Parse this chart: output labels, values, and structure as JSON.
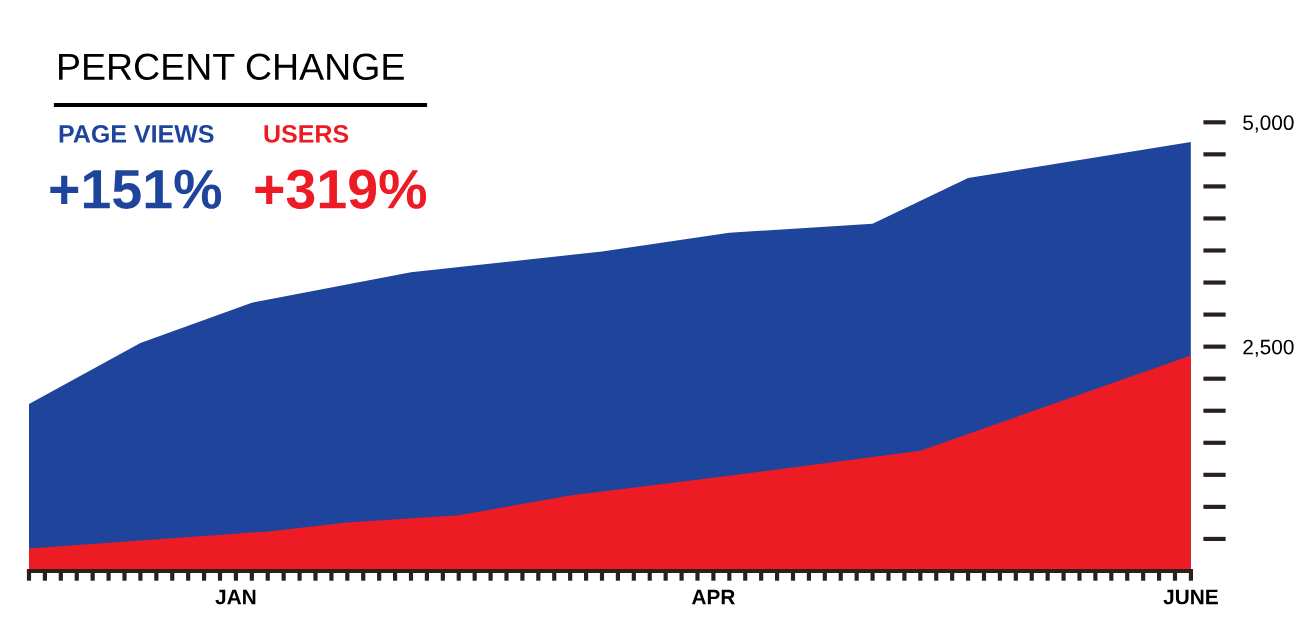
{
  "chart_data": {
    "type": "area",
    "title": "PERCENT CHANGE",
    "annotations": [
      "+151%",
      "+319%"
    ],
    "legend": "top left",
    "categories": [
      null,
      null,
      null,
      null,
      null,
      null,
      null,
      null,
      null,
      null,
      null,
      null,
      null,
      "JAN",
      null,
      null,
      null,
      null,
      null,
      null,
      null,
      null,
      null,
      null,
      null,
      null,
      null,
      null,
      null,
      null,
      null,
      null,
      null,
      null,
      null,
      null,
      null,
      null,
      null,
      null,
      null,
      null,
      null,
      "APR",
      null,
      null,
      null,
      null,
      null,
      null,
      null,
      null,
      null,
      null,
      null,
      null,
      null,
      null,
      null,
      null,
      null,
      null,
      null,
      null,
      null,
      null,
      null,
      null,
      null,
      null,
      null,
      null,
      null,
      "JUNE"
    ],
    "series": [
      {
        "name": "PAGE VIEWS",
        "color": "#1e459b",
        "values": [
          1860,
          null,
          null,
          null,
          null,
          null,
          null,
          2540,
          null,
          null,
          null,
          null,
          null,
          null,
          2990,
          null,
          null,
          null,
          null,
          null,
          null,
          null,
          null,
          null,
          3330,
          null,
          null,
          null,
          null,
          null,
          null,
          null,
          null,
          null,
          null,
          null,
          3560,
          null,
          null,
          null,
          null,
          null,
          null,
          null,
          3770,
          null,
          null,
          null,
          null,
          null,
          null,
          null,
          null,
          3870,
          null,
          null,
          null,
          null,
          null,
          4380,
          null,
          null,
          null,
          null,
          null,
          null,
          null,
          null,
          null,
          null,
          null,
          null,
          null,
          4780
        ]
      },
      {
        "name": "USERS",
        "color": "#ed1c24",
        "values": [
          250,
          null,
          null,
          null,
          null,
          null,
          null,
          null,
          null,
          null,
          null,
          null,
          null,
          null,
          null,
          440,
          null,
          null,
          null,
          null,
          540,
          null,
          null,
          null,
          null,
          null,
          null,
          620,
          null,
          null,
          null,
          null,
          null,
          null,
          840,
          null,
          null,
          null,
          null,
          null,
          null,
          null,
          null,
          null,
          1060,
          null,
          null,
          null,
          null,
          null,
          null,
          null,
          null,
          null,
          null,
          null,
          1340,
          null,
          null,
          null,
          null,
          null,
          null,
          null,
          null,
          null,
          null,
          null,
          null,
          null,
          null,
          null,
          null,
          2400
        ]
      }
    ],
    "ylim": [
      0,
      5000
    ],
    "yticks": [
      {
        "value": 2500,
        "label": "2,500"
      },
      {
        "value": 5000,
        "label": "5,000"
      }
    ]
  }
}
